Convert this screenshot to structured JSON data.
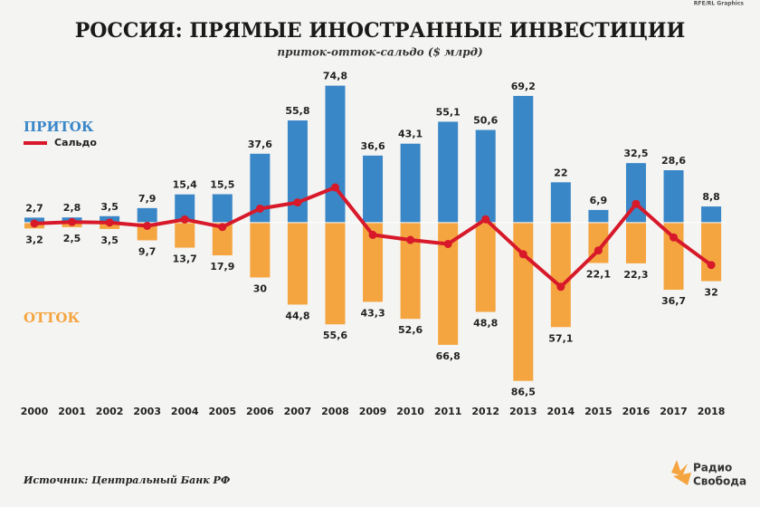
{
  "chart_data": {
    "type": "bar",
    "title": "РОССИЯ: ПРЯМЫЕ ИНОСТРАННЫЕ ИНВЕСТИЦИИ",
    "subtitle": "приток-отток-сальдо ($ млрд)",
    "credit": "RFE/RL Graphics",
    "source": "Источник: Центральный Банк РФ",
    "logo": [
      "Радио",
      "Свобода"
    ],
    "categories": [
      "2000",
      "2001",
      "2002",
      "2003",
      "2004",
      "2005",
      "2006",
      "2007",
      "2008",
      "2009",
      "2010",
      "2011",
      "2012",
      "2013",
      "2014",
      "2015",
      "2016",
      "2017",
      "2018"
    ],
    "ylim": [
      -100,
      85
    ],
    "series": [
      {
        "name": "ПРИТОК",
        "color": "#3a87c8",
        "values": [
          2.7,
          2.8,
          3.5,
          7.9,
          15.4,
          15.5,
          37.6,
          55.8,
          74.8,
          36.6,
          43.1,
          55.1,
          50.6,
          69.2,
          22,
          6.9,
          32.5,
          28.6,
          8.8
        ],
        "value_labels": [
          "2,7",
          "2,8",
          "3,5",
          "7,9",
          "15,4",
          "15,5",
          "37,6",
          "55,8",
          "74,8",
          "36,6",
          "43,1",
          "55,1",
          "50,6",
          "69,2",
          "22",
          "6,9",
          "32,5",
          "28,6",
          "8,8"
        ]
      },
      {
        "name": "ОТТОК",
        "color": "#f5a540",
        "values": [
          -3.2,
          -2.5,
          -3.5,
          -9.7,
          -13.7,
          -17.9,
          -30,
          -44.8,
          -55.6,
          -43.3,
          -52.6,
          -66.8,
          -48.8,
          -86.5,
          -57.1,
          -22.1,
          -22.3,
          -36.7,
          -32
        ],
        "value_labels": [
          "3,2",
          "2,5",
          "3,5",
          "9,7",
          "13,7",
          "17,9",
          "30",
          "44,8",
          "55,6",
          "43,3",
          "52,6",
          "66,8",
          "48,8",
          "86,5",
          "57,1",
          "22,1",
          "22,3",
          "36,7",
          "32"
        ]
      },
      {
        "name": "Сальдо",
        "color": "#d7192a",
        "type": "line",
        "values": [
          -0.5,
          0.3,
          0,
          -1.8,
          1.7,
          -2.4,
          7.6,
          11,
          19.2,
          -6.7,
          -9.5,
          -11.7,
          1.8,
          -17.3,
          -35.1,
          -15.2,
          10.2,
          -8.1,
          -23.2
        ]
      }
    ]
  }
}
